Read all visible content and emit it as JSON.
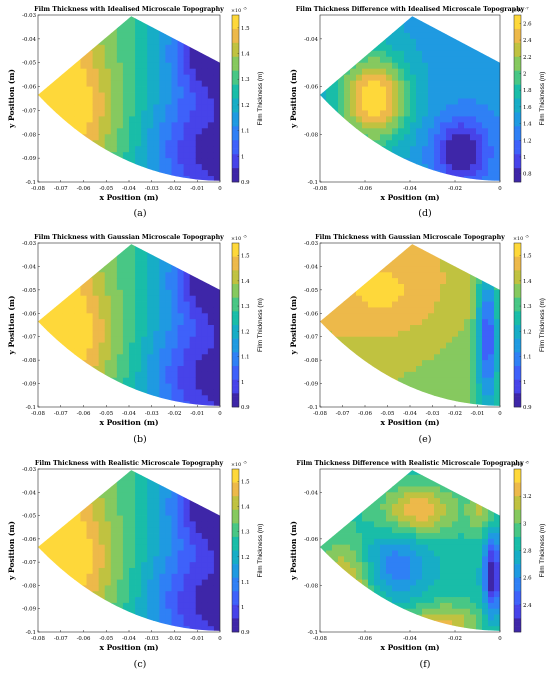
{
  "colors": {
    "parula": [
      "#3e26a8",
      "#4743e9",
      "#3e61fa",
      "#2f80f5",
      "#1f9ae1",
      "#17adc6",
      "#19bda8",
      "#48c785",
      "#86c95f",
      "#c0c240",
      "#edb94a",
      "#fed83a",
      "#f9fb14"
    ],
    "bg": "#ffffff",
    "text": "#000000"
  },
  "chart_data": [
    {
      "id": "a",
      "type": "heatmap",
      "title": "Film Thickness with Idealised Microscale Topography",
      "xlabel": "x Position (m)",
      "ylabel": "y Position (m)",
      "colorbar_label": "Film Thickness (m)",
      "colorbar_exponent": "×10",
      "colorbar_power": "-5",
      "xticks": [
        "-0.08",
        "-0.07",
        "-0.06",
        "-0.05",
        "-0.04",
        "-0.03",
        "-0.02",
        "-0.01",
        "0"
      ],
      "yticks": [
        "-0.03",
        "-0.04",
        "-0.05",
        "-0.06",
        "-0.07",
        "-0.08",
        "-0.09",
        "-0.1"
      ],
      "cticks": [
        "1.5",
        "1.4",
        "1.3",
        "1.2",
        "1.1",
        "1",
        "0.9"
      ],
      "xlim": [
        -0.08,
        0
      ],
      "ylim": [
        -0.1,
        -0.03
      ],
      "clim": [
        0.9,
        1.55
      ],
      "caption": "(a)"
    },
    {
      "id": "d",
      "type": "heatmap",
      "title": "Film Thickness Difference with Idealised Microscale Topography",
      "xlabel": "x Position (m)",
      "ylabel": "y Position (m)",
      "colorbar_label": "Film Thickness (m)",
      "colorbar_exponent": "×10",
      "colorbar_power": "-7",
      "xticks": [
        "-0.08",
        "-0.06",
        "-0.04",
        "-0.02",
        "0"
      ],
      "yticks": [
        "-0.04",
        "-0.06",
        "-0.08",
        "-0.1"
      ],
      "cticks": [
        "2.6",
        "2.4",
        "2.2",
        "2",
        "1.8",
        "1.6",
        "1.4",
        "1.2",
        "1",
        "0.8"
      ],
      "xlim": [
        -0.08,
        0
      ],
      "ylim": [
        -0.1,
        -0.03
      ],
      "clim": [
        0.7,
        2.7
      ],
      "caption": "(d)"
    },
    {
      "id": "b",
      "type": "heatmap",
      "title": "Film Thickness with Gaussian Microscale Topography",
      "xlabel": "x Position (m)",
      "ylabel": "y Position (m)",
      "colorbar_label": "Film Thickness (m)",
      "colorbar_exponent": "×10",
      "colorbar_power": "-5",
      "xticks": [
        "-0.08",
        "-0.07",
        "-0.06",
        "-0.05",
        "-0.04",
        "-0.03",
        "-0.02",
        "-0.01",
        "0"
      ],
      "yticks": [
        "-0.03",
        "-0.04",
        "-0.05",
        "-0.06",
        "-0.07",
        "-0.08",
        "-0.09",
        "-0.1"
      ],
      "cticks": [
        "1.5",
        "1.4",
        "1.3",
        "1.2",
        "1.1",
        "1",
        "0.9"
      ],
      "xlim": [
        -0.08,
        0
      ],
      "ylim": [
        -0.1,
        -0.03
      ],
      "clim": [
        0.9,
        1.55
      ],
      "caption": "(b)"
    },
    {
      "id": "e",
      "type": "heatmap",
      "title": "Film Thickness with Gaussian Microscale Topography",
      "xlabel": "x Position (m)",
      "ylabel": "y Position (m)",
      "colorbar_label": "Film Thickness (m)",
      "colorbar_exponent": "×10",
      "colorbar_power": "-5",
      "xticks": [
        "-0.08",
        "-0.07",
        "-0.06",
        "-0.05",
        "-0.04",
        "-0.03",
        "-0.02",
        "-0.01",
        "0"
      ],
      "yticks": [
        "-0.03",
        "-0.04",
        "-0.05",
        "-0.06",
        "-0.07",
        "-0.08",
        "-0.09",
        "-0.1"
      ],
      "cticks": [
        "1.5",
        "1.4",
        "1.3",
        "1.2",
        "1.1",
        "1",
        "0.9"
      ],
      "xlim": [
        -0.08,
        0
      ],
      "ylim": [
        -0.1,
        -0.03
      ],
      "clim": [
        0.9,
        1.55
      ],
      "caption": "(e)"
    },
    {
      "id": "c",
      "type": "heatmap",
      "title": "Film Thickness with Realistic Microscale Topography",
      "xlabel": "x Position (m)",
      "ylabel": "y Position (m)",
      "colorbar_label": "Film Thickness (m)",
      "colorbar_exponent": "×10",
      "colorbar_power": "-5",
      "xticks": [
        "-0.08",
        "-0.07",
        "-0.06",
        "-0.05",
        "-0.04",
        "-0.03",
        "-0.02",
        "-0.01",
        "0"
      ],
      "yticks": [
        "-0.03",
        "-0.04",
        "-0.05",
        "-0.06",
        "-0.07",
        "-0.08",
        "-0.09",
        "-0.1"
      ],
      "cticks": [
        "1.5",
        "1.4",
        "1.3",
        "1.2",
        "1.1",
        "1",
        "0.9"
      ],
      "xlim": [
        -0.08,
        0
      ],
      "ylim": [
        -0.1,
        -0.03
      ],
      "clim": [
        0.9,
        1.55
      ],
      "caption": "(c)"
    },
    {
      "id": "f",
      "type": "heatmap",
      "title": "Film Thickness Difference with Realistic Microscale Topography",
      "xlabel": "x Position (m)",
      "ylabel": "y Position (m)",
      "colorbar_label": "Film Thickness (m)",
      "colorbar_exponent": "×10",
      "colorbar_power": "-8",
      "xticks": [
        "-0.08",
        "-0.06",
        "-0.04",
        "-0.02",
        "0"
      ],
      "yticks": [
        "-0.04",
        "-0.06",
        "-0.08",
        "-0.1"
      ],
      "cticks": [
        "3.2",
        "3",
        "2.8",
        "2.6",
        "2.4"
      ],
      "xlim": [
        -0.08,
        0
      ],
      "ylim": [
        -0.1,
        -0.03
      ],
      "clim": [
        2.2,
        3.4
      ],
      "caption": "(f)"
    }
  ]
}
